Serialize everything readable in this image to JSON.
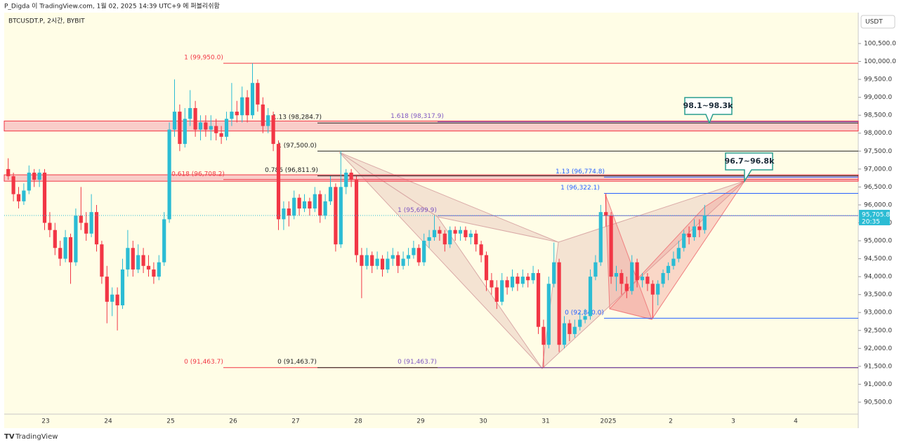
{
  "chart_data": {
    "type": "candlestick",
    "header": "P_Digda 이 TradingView.com, 1월 02, 2025 14:39 UTC+9 에 퍼블리쉬함",
    "symbol": "BTCUSDT.P, 2시간, BYBIT",
    "currency": "USDT",
    "brand": "TradingView",
    "up_color": "#2bbcd4",
    "down_color": "#f23645",
    "categories": [
      "23",
      "24",
      "25",
      "26",
      "27",
      "28",
      "29",
      "30",
      "31",
      "2025",
      "2",
      "3",
      "4"
    ],
    "ylim": [
      90167,
      101361
    ],
    "yticks": [
      {
        "value": 90500,
        "label": "90,500.0"
      },
      {
        "value": 91000,
        "label": "91,000.0"
      },
      {
        "value": 91500,
        "label": "91,500.0"
      },
      {
        "value": 92000,
        "label": "92,000.0"
      },
      {
        "value": 92500,
        "label": "92,500.0"
      },
      {
        "value": 93000,
        "label": "93,000.0"
      },
      {
        "value": 93500,
        "label": "93,500.0"
      },
      {
        "value": 94000,
        "label": "94,000.0"
      },
      {
        "value": 94500,
        "label": "94,500.0"
      },
      {
        "value": 95000,
        "label": "95,000.0"
      },
      {
        "value": 95500,
        "label": "95,500.0"
      },
      {
        "value": 96000,
        "label": "96,000.0"
      },
      {
        "value": 96500,
        "label": "96,500.0"
      },
      {
        "value": 97000,
        "label": "97,000.0"
      },
      {
        "value": 97500,
        "label": "97,500.0"
      },
      {
        "value": 98000,
        "label": "98,000.0"
      },
      {
        "value": 98500,
        "label": "98,500.0"
      },
      {
        "value": 99000,
        "label": "99,000.0"
      },
      {
        "value": 99500,
        "label": "99,500.0"
      },
      {
        "value": 100000,
        "label": "100,000.0"
      },
      {
        "value": 100500,
        "label": "100,500.0"
      }
    ],
    "last_price": {
      "value": 95705.8,
      "label": "95,705.8"
    },
    "countdown": "20:35",
    "ohlc": [
      [
        97000,
        97300,
        96700,
        96800
      ],
      [
        96800,
        96900,
        96100,
        96300
      ],
      [
        96300,
        96500,
        95900,
        96100
      ],
      [
        96100,
        96600,
        96000,
        96400
      ],
      [
        96400,
        97100,
        96300,
        96900
      ],
      [
        96900,
        97000,
        96500,
        96700
      ],
      [
        96700,
        97000,
        96500,
        96900
      ],
      [
        96900,
        97000,
        95300,
        95500
      ],
      [
        95500,
        95800,
        95100,
        95300
      ],
      [
        95300,
        95500,
        94600,
        94800
      ],
      [
        94800,
        95000,
        94300,
        94500
      ],
      [
        94500,
        95300,
        94400,
        95100
      ],
      [
        95100,
        95200,
        93800,
        94400
      ],
      [
        94400,
        95900,
        94300,
        95700
      ],
      [
        95700,
        96500,
        95300,
        95500
      ],
      [
        95500,
        95800,
        95000,
        95200
      ],
      [
        95200,
        96300,
        95100,
        95800
      ],
      [
        95800,
        96000,
        94700,
        94900
      ],
      [
        94900,
        95000,
        93800,
        94000
      ],
      [
        94000,
        94300,
        92700,
        93300
      ],
      [
        93300,
        93700,
        92900,
        93500
      ],
      [
        93500,
        93700,
        92500,
        93200
      ],
      [
        93200,
        94500,
        93100,
        94200
      ],
      [
        94200,
        95300,
        94000,
        94800
      ],
      [
        94800,
        95000,
        94000,
        94200
      ],
      [
        94200,
        94900,
        94100,
        94600
      ],
      [
        94600,
        94800,
        94100,
        94300
      ],
      [
        94300,
        94600,
        94000,
        94200
      ],
      [
        94200,
        94400,
        93800,
        94000
      ],
      [
        94000,
        94600,
        93900,
        94400
      ],
      [
        94400,
        95800,
        94300,
        95600
      ],
      [
        95600,
        98300,
        95500,
        98100
      ],
      [
        98100,
        99500,
        97900,
        98600
      ],
      [
        98600,
        98800,
        97500,
        97700
      ],
      [
        97700,
        98700,
        97600,
        98400
      ],
      [
        98400,
        99200,
        98200,
        98700
      ],
      [
        98700,
        98900,
        97900,
        98100
      ],
      [
        98100,
        98500,
        97800,
        98300
      ],
      [
        98300,
        98500,
        97900,
        98100
      ],
      [
        98100,
        98500,
        97800,
        98200
      ],
      [
        98200,
        98400,
        97800,
        98000
      ],
      [
        98000,
        98200,
        97700,
        97900
      ],
      [
        97900,
        98600,
        97800,
        98400
      ],
      [
        98400,
        99400,
        98200,
        98600
      ],
      [
        98600,
        98900,
        98300,
        98500
      ],
      [
        98500,
        99300,
        98300,
        99000
      ],
      [
        99000,
        99200,
        98300,
        98500
      ],
      [
        98500,
        99950,
        98400,
        99400
      ],
      [
        99400,
        99500,
        98600,
        98800
      ],
      [
        98800,
        99000,
        98000,
        98200
      ],
      [
        98200,
        98700,
        98000,
        98500
      ],
      [
        98500,
        98600,
        97500,
        97700
      ],
      [
        97700,
        97800,
        95300,
        95600
      ],
      [
        95600,
        96100,
        95300,
        95900
      ],
      [
        95900,
        96100,
        95400,
        95700
      ],
      [
        95700,
        96400,
        95600,
        96200
      ],
      [
        96200,
        96300,
        95700,
        95900
      ],
      [
        95900,
        96300,
        95800,
        96100
      ],
      [
        96100,
        96200,
        95700,
        95900
      ],
      [
        95900,
        96500,
        95800,
        96300
      ],
      [
        96300,
        96400,
        95500,
        95700
      ],
      [
        95700,
        96300,
        95600,
        96100
      ],
      [
        96100,
        96800,
        96000,
        96500
      ],
      [
        96500,
        96600,
        94700,
        94900
      ],
      [
        94900,
        97500,
        94800,
        96500
      ],
      [
        96500,
        97000,
        96300,
        96900
      ],
      [
        96900,
        97000,
        96500,
        96700
      ],
      [
        96700,
        96800,
        94400,
        94600
      ],
      [
        94600,
        94800,
        93400,
        94300
      ],
      [
        94300,
        94800,
        94200,
        94600
      ],
      [
        94600,
        94700,
        94100,
        94300
      ],
      [
        94300,
        94700,
        94200,
        94500
      ],
      [
        94500,
        94600,
        94000,
        94200
      ],
      [
        94200,
        94700,
        94100,
        94500
      ],
      [
        94500,
        94800,
        94300,
        94600
      ],
      [
        94600,
        94700,
        94100,
        94300
      ],
      [
        94300,
        94700,
        94200,
        94500
      ],
      [
        94500,
        94800,
        94300,
        94600
      ],
      [
        94600,
        95000,
        94500,
        94800
      ],
      [
        94800,
        94900,
        94300,
        94400
      ],
      [
        94400,
        95200,
        94300,
        95000
      ],
      [
        95000,
        95300,
        94800,
        95100
      ],
      [
        95100,
        95700,
        95000,
        95300
      ],
      [
        95300,
        95400,
        95000,
        95200
      ],
      [
        95200,
        95300,
        94700,
        94900
      ],
      [
        94900,
        95400,
        94800,
        95300
      ],
      [
        95300,
        95400,
        95000,
        95200
      ],
      [
        95200,
        95400,
        95000,
        95300
      ],
      [
        95300,
        95400,
        95000,
        95100
      ],
      [
        95100,
        95300,
        94900,
        95200
      ],
      [
        95200,
        95300,
        94700,
        94900
      ],
      [
        94900,
        95000,
        94400,
        94600
      ],
      [
        94600,
        94700,
        93600,
        93900
      ],
      [
        93900,
        94100,
        93500,
        93700
      ],
      [
        93700,
        93900,
        93100,
        93300
      ],
      [
        93300,
        94100,
        93200,
        93900
      ],
      [
        93900,
        94000,
        93500,
        93700
      ],
      [
        93700,
        94200,
        93600,
        94000
      ],
      [
        94000,
        94100,
        93600,
        93800
      ],
      [
        93800,
        94200,
        93700,
        94000
      ],
      [
        94000,
        94100,
        93700,
        93900
      ],
      [
        93900,
        94300,
        93800,
        94100
      ],
      [
        94100,
        94200,
        92400,
        92600
      ],
      [
        92600,
        92800,
        91464,
        92100
      ],
      [
        92100,
        94000,
        92000,
        93800
      ],
      [
        93800,
        94950,
        93700,
        94400
      ],
      [
        94400,
        94500,
        91900,
        92100
      ],
      [
        92100,
        92900,
        92000,
        92700
      ],
      [
        92700,
        92800,
        92200,
        92400
      ],
      [
        92400,
        92800,
        92300,
        92600
      ],
      [
        92600,
        93000,
        92500,
        92800
      ],
      [
        92800,
        93100,
        92700,
        92900
      ],
      [
        92900,
        94200,
        92800,
        94000
      ],
      [
        94000,
        94600,
        93900,
        94400
      ],
      [
        94400,
        96000,
        94300,
        95800
      ],
      [
        95800,
        96322,
        95400,
        95700
      ],
      [
        95700,
        95800,
        93800,
        94000
      ],
      [
        94000,
        94300,
        93600,
        94100
      ],
      [
        94100,
        94200,
        93500,
        93800
      ],
      [
        93800,
        94000,
        93400,
        93600
      ],
      [
        93600,
        94600,
        93500,
        94400
      ],
      [
        94400,
        94500,
        93700,
        93900
      ],
      [
        93900,
        94100,
        93700,
        94000
      ],
      [
        94000,
        94100,
        93600,
        93800
      ],
      [
        93800,
        93900,
        92840,
        93500
      ],
      [
        93500,
        93900,
        93200,
        93800
      ],
      [
        93800,
        94200,
        93700,
        94100
      ],
      [
        94100,
        94400,
        93900,
        94300
      ],
      [
        94300,
        94700,
        94200,
        94500
      ],
      [
        94500,
        95000,
        94400,
        94800
      ],
      [
        94800,
        95300,
        94700,
        95200
      ],
      [
        95200,
        95400,
        94900,
        95100
      ],
      [
        95100,
        95600,
        95000,
        95400
      ],
      [
        95400,
        95600,
        95100,
        95300
      ],
      [
        95300,
        96000,
        95200,
        95705.8
      ]
    ],
    "levels": [
      {
        "label": "1 (99,950.0)",
        "value": 99950,
        "color": "#f23645"
      },
      {
        "label": "0.618 (96,708.2)",
        "value": 96708.2,
        "color": "#f23645"
      },
      {
        "label": "0 (91,463.7)",
        "value": 91463.7,
        "color": "#f23645"
      },
      {
        "label": "1.13 (98,284.7)",
        "value": 98284.7,
        "color": "#222222"
      },
      {
        "label": "1 (97,500.0)",
        "value": 97500,
        "color": "#222222"
      },
      {
        "label": "0.786 (96,811.9)",
        "value": 96811.9,
        "color": "#222222"
      },
      {
        "label": "0 (91,463.7)",
        "value": 91463.7,
        "color": "#222222"
      },
      {
        "label": "1.618 (98,317.9)",
        "value": 98317.9,
        "color": "#7e57c2"
      },
      {
        "label": "1 (95,699.9)",
        "value": 95699.9,
        "color": "#7e57c2"
      },
      {
        "label": "0 (91,463.7)",
        "value": 91463.7,
        "color": "#7e57c2"
      },
      {
        "label": "1.13 (96,774.8)",
        "value": 96774.8,
        "color": "#2962ff"
      },
      {
        "label": "1 (96,322.1)",
        "value": 96322.1,
        "color": "#2962ff"
      },
      {
        "label": "0 (92,840.0)",
        "value": 92840,
        "color": "#2962ff"
      }
    ],
    "zones": [
      {
        "low": 98100,
        "high": 98300,
        "label": "98.1~98.3k"
      },
      {
        "low": 96700,
        "high": 96800,
        "label": "96.7~96.8k"
      }
    ]
  }
}
